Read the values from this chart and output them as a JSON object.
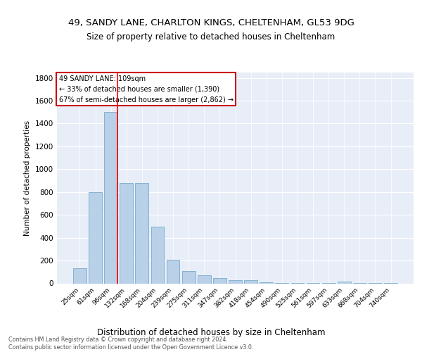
{
  "title1": "49, SANDY LANE, CHARLTON KINGS, CHELTENHAM, GL53 9DG",
  "title2": "Size of property relative to detached houses in Cheltenham",
  "xlabel": "Distribution of detached houses by size in Cheltenham",
  "ylabel": "Number of detached properties",
  "categories": [
    "25sqm",
    "61sqm",
    "96sqm",
    "132sqm",
    "168sqm",
    "204sqm",
    "239sqm",
    "275sqm",
    "311sqm",
    "347sqm",
    "382sqm",
    "418sqm",
    "454sqm",
    "490sqm",
    "525sqm",
    "561sqm",
    "597sqm",
    "633sqm",
    "668sqm",
    "704sqm",
    "740sqm"
  ],
  "values": [
    130,
    800,
    1500,
    880,
    880,
    495,
    205,
    110,
    70,
    45,
    30,
    25,
    10,
    5,
    5,
    5,
    5,
    15,
    2,
    2,
    2
  ],
  "bar_color": "#b8d0e8",
  "bar_edge_color": "#7aaaca",
  "annotation_title": "49 SANDY LANE: 109sqm",
  "annotation_line1": "← 33% of detached houses are smaller (1,390)",
  "annotation_line2": "67% of semi-detached houses are larger (2,862) →",
  "ylim": [
    0,
    1850
  ],
  "yticks": [
    0,
    200,
    400,
    600,
    800,
    1000,
    1200,
    1400,
    1600,
    1800
  ],
  "footer": "Contains HM Land Registry data © Crown copyright and database right 2024.\nContains public sector information licensed under the Open Government Licence v3.0.",
  "bg_color": "#ffffff",
  "plot_bg_color": "#e8eef8"
}
